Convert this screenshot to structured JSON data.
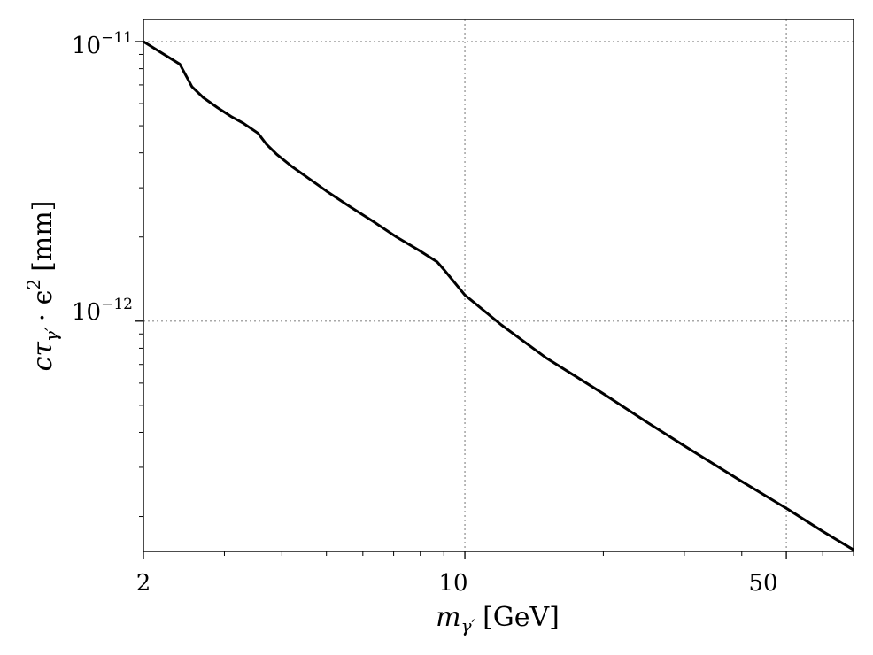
{
  "chart_data": {
    "type": "line",
    "x_scale": "log",
    "y_scale": "log",
    "xlim": [
      2,
      70
    ],
    "ylim": [
      1.5e-13,
      1.2e-11
    ],
    "grid": true,
    "xlabel_main": "m",
    "xlabel_sub": "γ′",
    "xlabel_unit": "[GeV]",
    "ylabel_main": "cτ",
    "ylabel_sub": "γ′",
    "ylabel_rest": "· ϵ",
    "ylabel_sup": "2",
    "ylabel_unit": "[mm]",
    "x_ticks": [
      {
        "value": 2,
        "label": "2"
      },
      {
        "value": 10,
        "label": "10"
      },
      {
        "value": 50,
        "label": "50"
      }
    ],
    "y_ticks": [
      {
        "value": 1e-11,
        "base": "10",
        "exp": "−11"
      },
      {
        "value": 1e-12,
        "base": "10",
        "exp": "−12"
      }
    ],
    "series": [
      {
        "color": "#000000",
        "x": [
          2.0,
          2.4,
          2.55,
          2.7,
          2.9,
          3.1,
          3.3,
          3.55,
          3.7,
          3.9,
          4.2,
          4.6,
          5.0,
          5.6,
          6.3,
          7.1,
          8.0,
          8.7,
          9.0,
          10.0,
          12.0,
          15.0,
          20.0,
          25.0,
          30.0,
          40.0,
          50.0,
          60.0,
          70.0
        ],
        "y": [
          1e-11,
          8.3e-12,
          6.9e-12,
          6.3e-12,
          5.8e-12,
          5.4e-12,
          5.1e-12,
          4.7e-12,
          4.3e-12,
          3.95e-12,
          3.58e-12,
          3.22e-12,
          2.92e-12,
          2.58e-12,
          2.28e-12,
          2e-12,
          1.78e-12,
          1.63e-12,
          1.53e-12,
          1.24e-12,
          9.7e-13,
          7.4e-13,
          5.5e-13,
          4.33e-13,
          3.58e-13,
          2.67e-13,
          2.14e-13,
          1.77e-13,
          1.52e-13
        ]
      }
    ]
  }
}
